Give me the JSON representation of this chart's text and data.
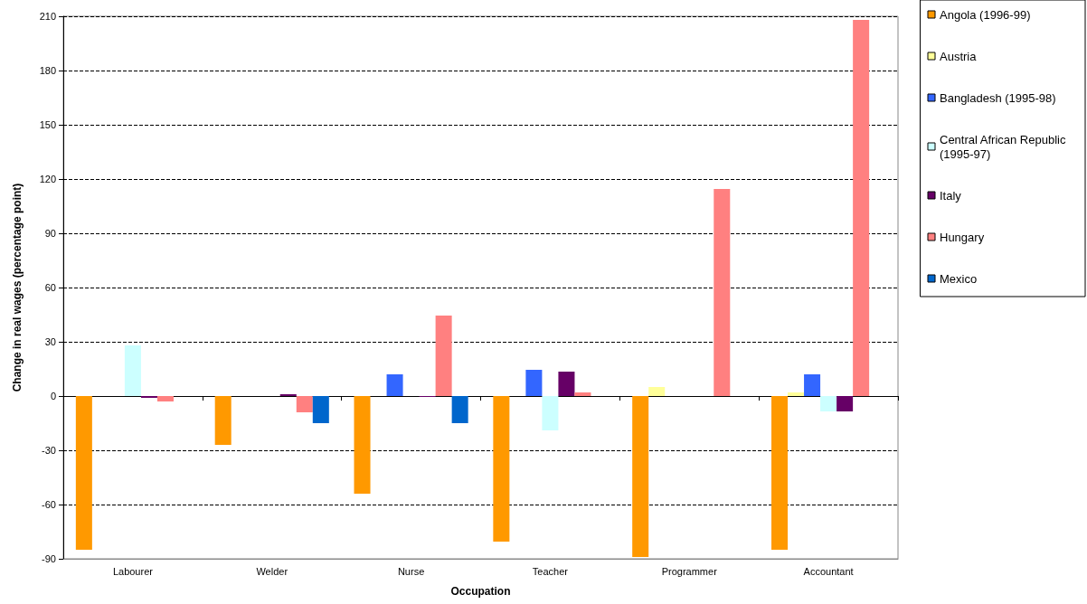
{
  "chart_data": {
    "type": "bar",
    "xlabel": "Occupation",
    "ylabel": "Change in real wages (percentage point)",
    "categories": [
      "Labourer",
      "Welder",
      "Nurse",
      "Teacher",
      "Programmer",
      "Accountant"
    ],
    "series": [
      {
        "name": "Angola (1996-99)",
        "color": "#ff9900",
        "values": [
          -85,
          -27,
          -54,
          -80.5,
          -89,
          -85
        ]
      },
      {
        "name": "Austria",
        "color": "#ffff99",
        "values": [
          null,
          null,
          null,
          null,
          5,
          2
        ]
      },
      {
        "name": "Bangladesh (1995-98)",
        "color": "#3366ff",
        "values": [
          null,
          null,
          12,
          14.5,
          null,
          12
        ]
      },
      {
        "name": "Central African Republic (1995-97)",
        "color": "#ccffff",
        "values": [
          28,
          null,
          null,
          -19,
          null,
          -8.5
        ]
      },
      {
        "name": "Italy",
        "color": "#660066",
        "values": [
          -1,
          1,
          -0.5,
          13.5,
          null,
          -8.5
        ]
      },
      {
        "name": "Hungary",
        "color": "#ff8080",
        "values": [
          -3,
          -9,
          44.5,
          2,
          114.5,
          208
        ]
      },
      {
        "name": "Mexico",
        "color": "#0066cc",
        "values": [
          null,
          -15,
          -15,
          null,
          null,
          null
        ]
      }
    ],
    "ylim": [
      -90,
      210
    ],
    "yticks": [
      -90,
      -60,
      -30,
      0,
      30,
      60,
      90,
      120,
      150,
      180,
      210
    ],
    "grid": "y",
    "legend": "right"
  }
}
